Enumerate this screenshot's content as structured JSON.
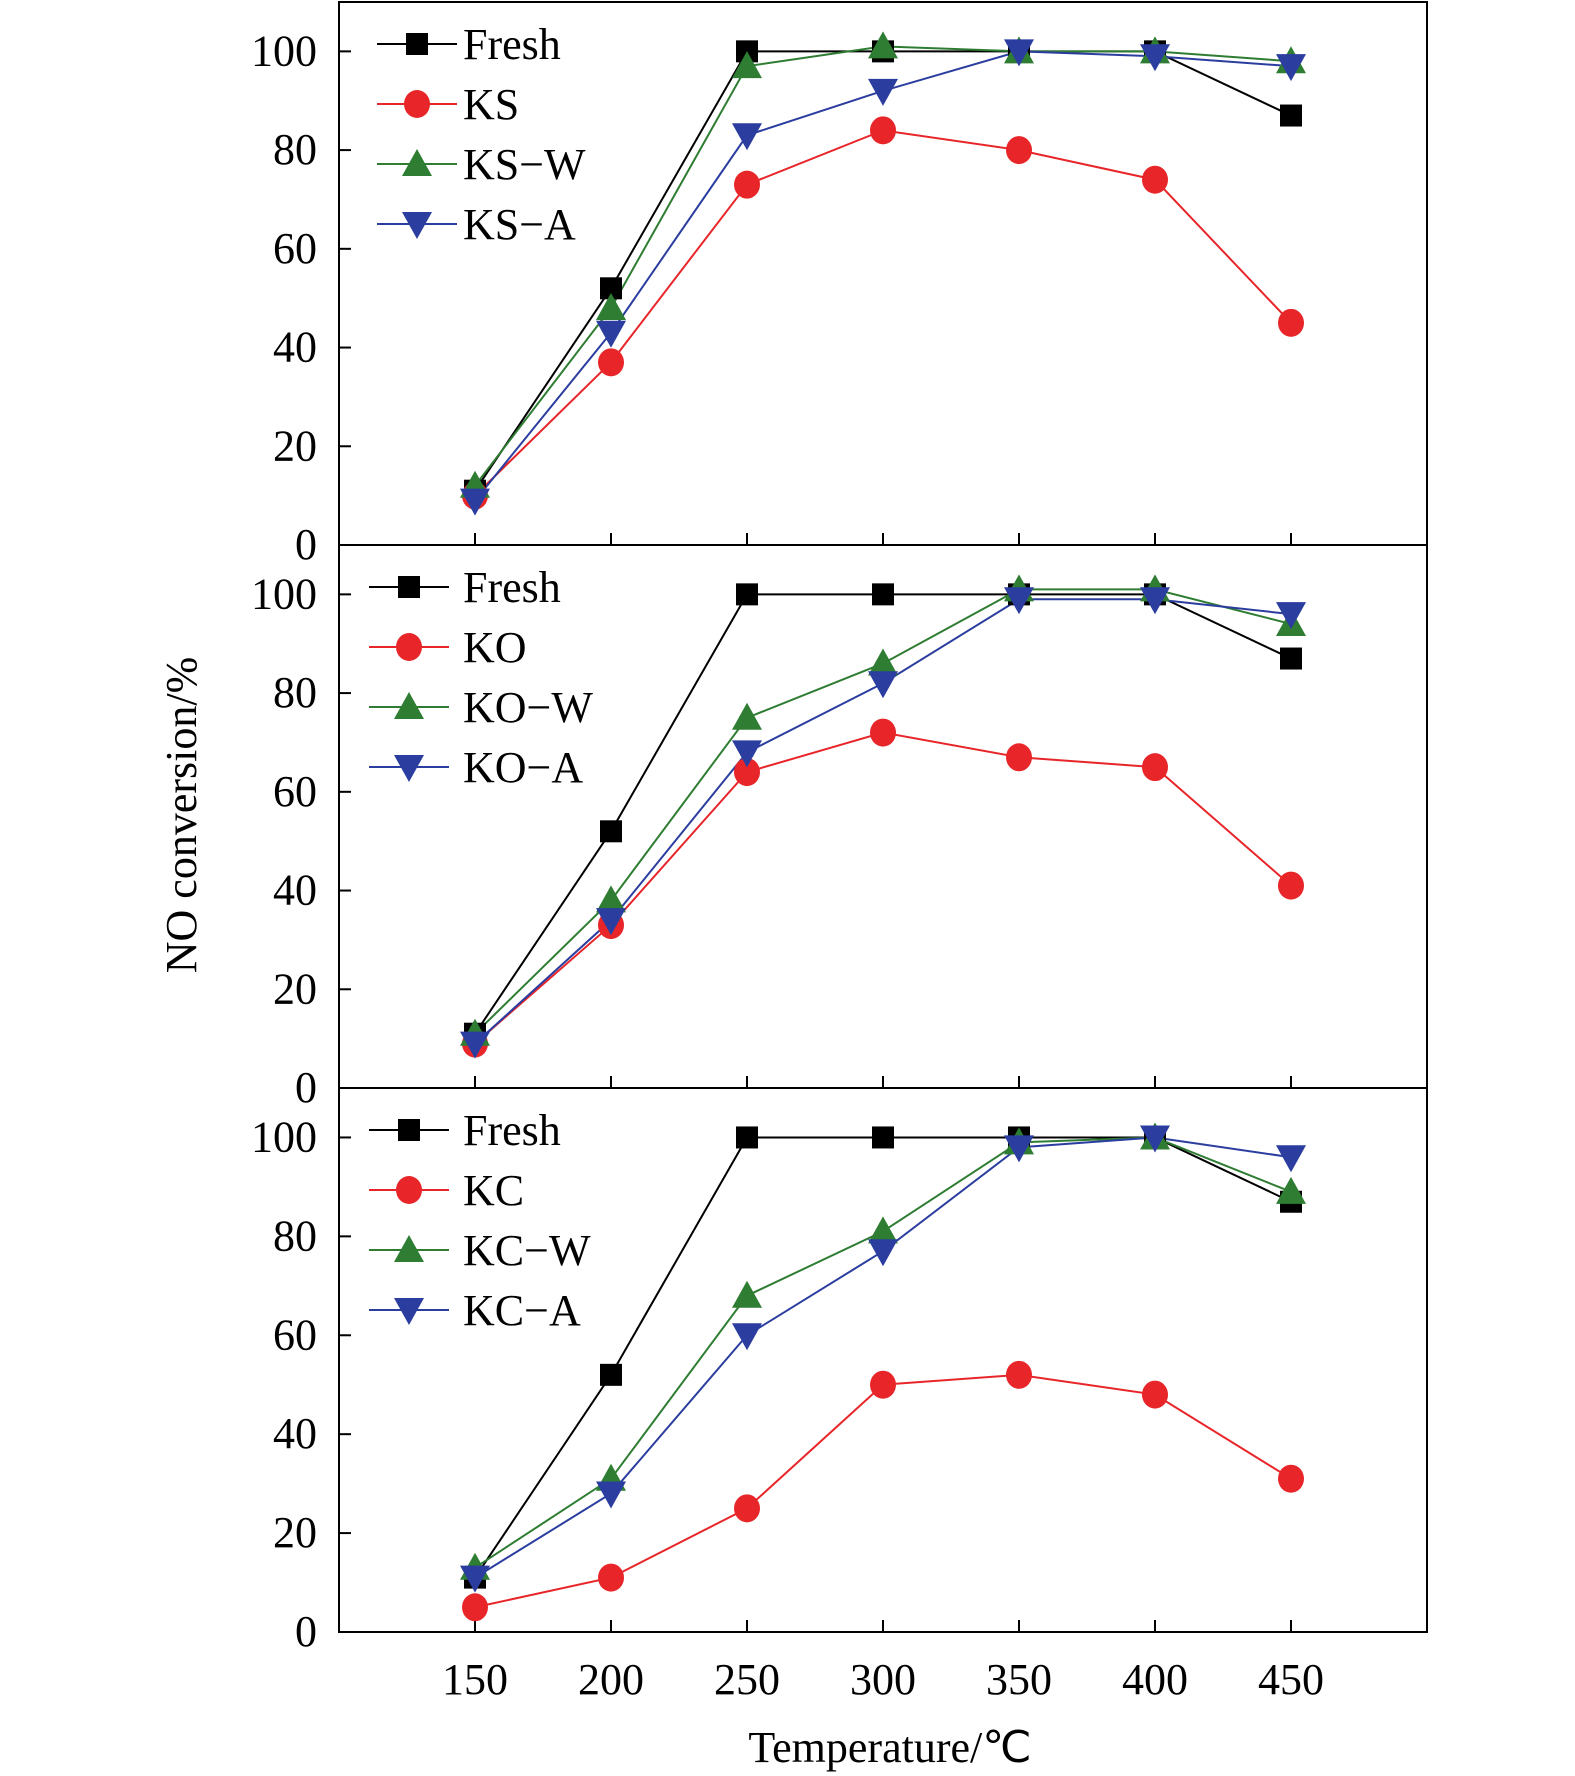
{
  "figure": {
    "ylabel": "NO conversion/%",
    "xlabel": "Temperature/℃"
  },
  "chart_data": [
    {
      "type": "line",
      "panel": "top",
      "x": [
        150,
        200,
        250,
        300,
        350,
        400,
        450
      ],
      "xlim": [
        100,
        500
      ],
      "ylim": [
        0,
        110
      ],
      "yticks": [
        0,
        20,
        40,
        60,
        80,
        100
      ],
      "xticks": [
        150,
        200,
        250,
        300,
        350,
        400,
        450
      ],
      "legend": "top-left",
      "grid": false,
      "series": [
        {
          "name": "Fresh",
          "marker": "square",
          "color": "#000000",
          "values": [
            11,
            52,
            100,
            100,
            100,
            100,
            87
          ]
        },
        {
          "name": "KS",
          "marker": "circle",
          "color": "#e8262a",
          "values": [
            10,
            37,
            73,
            84,
            80,
            74,
            45
          ]
        },
        {
          "name": "KS−W",
          "marker": "triangle-up",
          "color": "#2e7d32",
          "values": [
            12,
            48,
            97,
            101,
            100,
            100,
            98
          ]
        },
        {
          "name": "KS−A",
          "marker": "triangle-down",
          "color": "#2b3d9f",
          "values": [
            9,
            43,
            83,
            92,
            100,
            99,
            97
          ]
        }
      ]
    },
    {
      "type": "line",
      "panel": "middle",
      "x": [
        150,
        200,
        250,
        300,
        350,
        400,
        450
      ],
      "xlim": [
        100,
        500
      ],
      "ylim": [
        0,
        110
      ],
      "yticks": [
        0,
        20,
        40,
        60,
        80,
        100
      ],
      "xticks": [
        150,
        200,
        250,
        300,
        350,
        400,
        450
      ],
      "legend": "top-left",
      "grid": false,
      "series": [
        {
          "name": "Fresh",
          "marker": "square",
          "color": "#000000",
          "values": [
            11,
            52,
            100,
            100,
            100,
            100,
            87
          ]
        },
        {
          "name": "KO",
          "marker": "circle",
          "color": "#e8262a",
          "values": [
            9,
            33,
            64,
            72,
            67,
            65,
            41
          ]
        },
        {
          "name": "KO−W",
          "marker": "triangle-up",
          "color": "#2e7d32",
          "values": [
            11,
            38,
            75,
            86,
            101,
            101,
            94
          ]
        },
        {
          "name": "KO−A",
          "marker": "triangle-down",
          "color": "#2b3d9f",
          "values": [
            9,
            34,
            68,
            82,
            99,
            99,
            96
          ]
        }
      ]
    },
    {
      "type": "line",
      "panel": "bottom",
      "x": [
        150,
        200,
        250,
        300,
        350,
        400,
        450
      ],
      "xlim": [
        100,
        500
      ],
      "ylim": [
        0,
        110
      ],
      "yticks": [
        0,
        20,
        40,
        60,
        80,
        100
      ],
      "xticks": [
        150,
        200,
        250,
        300,
        350,
        400,
        450
      ],
      "legend": "top-left",
      "grid": false,
      "series": [
        {
          "name": "Fresh",
          "marker": "square",
          "color": "#000000",
          "values": [
            11,
            52,
            100,
            100,
            100,
            100,
            87
          ]
        },
        {
          "name": "KC",
          "marker": "circle",
          "color": "#e8262a",
          "values": [
            5,
            11,
            25,
            50,
            52,
            48,
            31
          ]
        },
        {
          "name": "KC−W",
          "marker": "triangle-up",
          "color": "#2e7d32",
          "values": [
            13,
            31,
            68,
            81,
            99,
            100,
            89
          ]
        },
        {
          "name": "KC−A",
          "marker": "triangle-down",
          "color": "#2b3d9f",
          "values": [
            11,
            28,
            60,
            77,
            98,
            100,
            96
          ]
        }
      ]
    }
  ]
}
